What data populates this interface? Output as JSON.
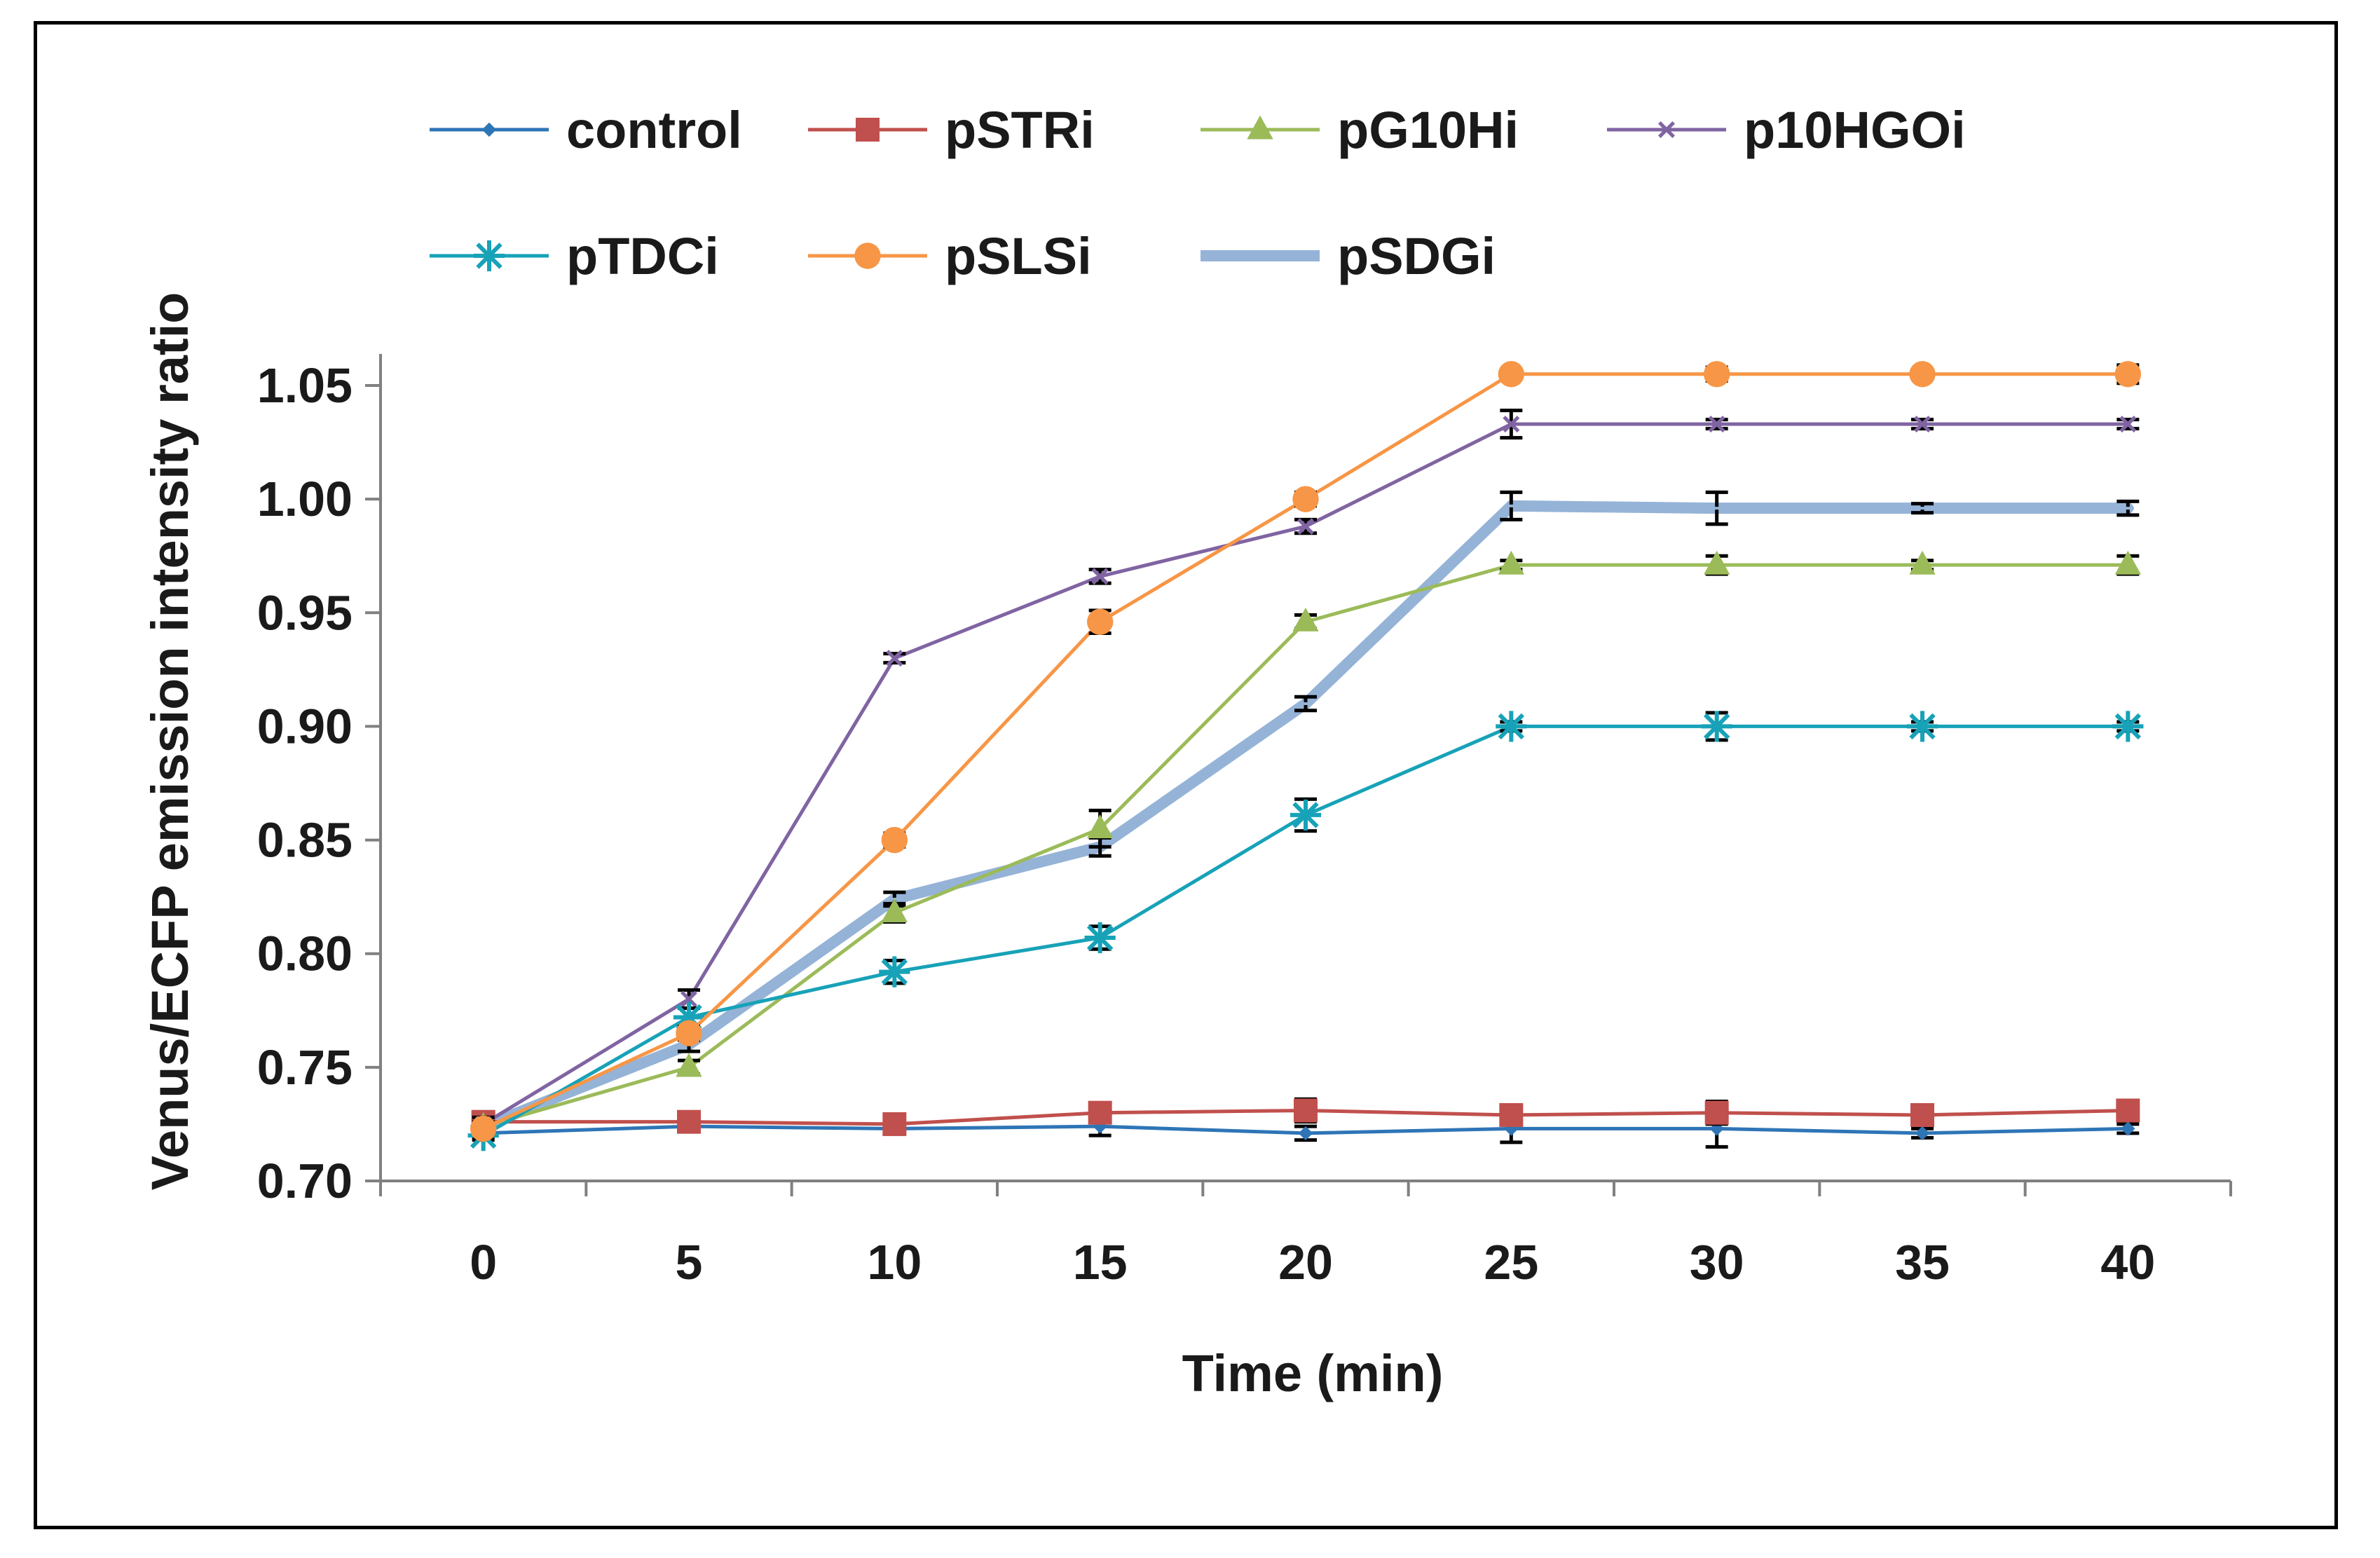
{
  "chart_data": {
    "type": "line",
    "title": "",
    "xlabel": "Time (min)",
    "ylabel": "Venus/ECFP emission intensity ratio",
    "x": [
      0,
      5,
      10,
      15,
      20,
      25,
      30,
      35,
      40
    ],
    "xlim": [
      -2.5,
      42.5
    ],
    "ylim": [
      0.7,
      1.05
    ],
    "yticks": [
      0.7,
      0.75,
      0.8,
      0.85,
      0.9,
      0.95,
      1.0,
      1.05
    ],
    "ytick_labels": [
      "0.70",
      "0.75",
      "0.80",
      "0.85",
      "0.90",
      "0.95",
      "1.00",
      "1.05"
    ],
    "xtick_labels": [
      "0",
      "5",
      "10",
      "15",
      "20",
      "25",
      "30",
      "35",
      "40"
    ],
    "grid": false,
    "legend_position": "top",
    "series": [
      {
        "name": "control",
        "color": "#2E75B6",
        "marker": "diamond",
        "line_width": 5,
        "values": [
          0.721,
          0.724,
          0.723,
          0.724,
          0.721,
          0.723,
          0.723,
          0.721,
          0.723
        ],
        "errors": [
          0.002,
          0.002,
          0.002,
          0.004,
          0.003,
          0.006,
          0.008,
          0.002,
          0.002
        ]
      },
      {
        "name": "pSTRi",
        "color": "#C0504D",
        "marker": "square",
        "line_width": 5,
        "values": [
          0.726,
          0.726,
          0.725,
          0.73,
          0.731,
          0.729,
          0.73,
          0.729,
          0.731
        ],
        "errors": [
          0.003,
          0.002,
          0.002,
          0.004,
          0.005,
          0.004,
          0.005,
          0.004,
          0.003
        ]
      },
      {
        "name": "pG10Hi",
        "color": "#9BBB59",
        "marker": "triangle",
        "line_width": 5,
        "values": [
          0.724,
          0.75,
          0.818,
          0.855,
          0.946,
          0.971,
          0.971,
          0.971,
          0.971
        ],
        "errors": [
          0.002,
          0.003,
          0.004,
          0.008,
          0.003,
          0.002,
          0.004,
          0.002,
          0.004
        ]
      },
      {
        "name": "p10HGOi",
        "color": "#8064A2",
        "marker": "x",
        "line_width": 5,
        "values": [
          0.725,
          0.78,
          0.93,
          0.966,
          0.988,
          1.033,
          1.033,
          1.033,
          1.033
        ],
        "errors": [
          0.003,
          0.004,
          0.002,
          0.003,
          0.003,
          0.006,
          0.002,
          0.002,
          0.002
        ]
      },
      {
        "name": "pTDCi",
        "color": "#17A2B8",
        "marker": "star",
        "line_width": 5,
        "values": [
          0.72,
          0.772,
          0.792,
          0.807,
          0.861,
          0.9,
          0.9,
          0.9,
          0.9
        ],
        "errors": [
          0.002,
          0.004,
          0.005,
          0.005,
          0.007,
          0.002,
          0.006,
          0.002,
          0.002
        ]
      },
      {
        "name": "pSLSi",
        "color": "#F79646",
        "marker": "circle",
        "line_width": 5,
        "values": [
          0.723,
          0.765,
          0.85,
          0.946,
          1.0,
          1.055,
          1.055,
          1.055,
          1.055
        ],
        "errors": [
          0.002,
          0.003,
          0.003,
          0.005,
          0.003,
          0.002,
          0.003,
          0.002,
          0.004
        ]
      },
      {
        "name": "pSDGi",
        "color": "#95B3D7",
        "marker": "dash",
        "line_width": 16,
        "values": [
          0.724,
          0.76,
          0.824,
          0.847,
          0.91,
          0.997,
          0.996,
          0.996,
          0.996
        ],
        "errors": [
          0.002,
          0.003,
          0.003,
          0.004,
          0.003,
          0.006,
          0.007,
          0.002,
          0.003
        ]
      }
    ]
  }
}
